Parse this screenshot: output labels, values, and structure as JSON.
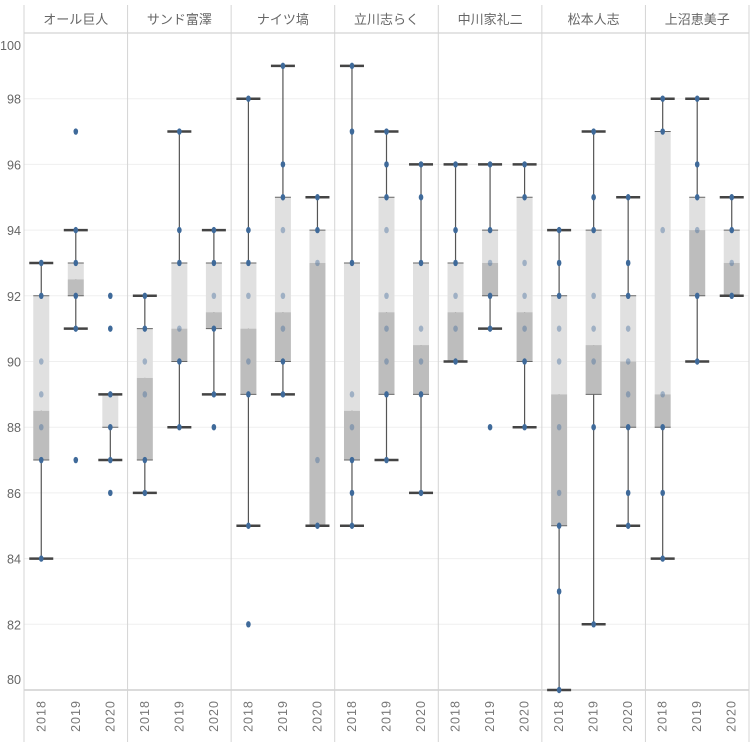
{
  "chart_data": {
    "type": "box",
    "title": "",
    "xlabel": "",
    "ylabel": "",
    "ylim": [
      80,
      100
    ],
    "yticks": [
      80,
      82,
      84,
      86,
      88,
      90,
      92,
      94,
      96,
      98,
      100
    ],
    "grid": true,
    "colors": {
      "point": "#3f6a9a",
      "box_upper": "#e0e0e0",
      "box_lower": "#bdbdbd",
      "whisker": "#555555",
      "cap": "#444444",
      "divider": "#d4d4d4"
    },
    "panels": [
      {
        "name": "オール巨人",
        "boxes": [
          {
            "year": "2018",
            "whisker_low": 84,
            "q1": 87,
            "median": 88.5,
            "q3": 92,
            "whisker_high": 93,
            "points": [
              93,
              92,
              90,
              89,
              88,
              87,
              84
            ]
          },
          {
            "year": "2019",
            "whisker_low": 91,
            "q1": 92,
            "median": 92.5,
            "q3": 93,
            "whisker_high": 94,
            "points": [
              97,
              94,
              93,
              92,
              91,
              87
            ]
          },
          {
            "year": "2020",
            "whisker_low": 87,
            "q1": 88,
            "median": 88,
            "q3": 89,
            "whisker_high": 89,
            "points": [
              92,
              91,
              89,
              88,
              87,
              86
            ]
          }
        ]
      },
      {
        "name": "サンド富澤",
        "boxes": [
          {
            "year": "2018",
            "whisker_low": 86,
            "q1": 87,
            "median": 89.5,
            "q3": 91,
            "whisker_high": 92,
            "points": [
              92,
              91,
              90,
              89,
              87,
              86
            ]
          },
          {
            "year": "2019",
            "whisker_low": 88,
            "q1": 90,
            "median": 91,
            "q3": 93,
            "whisker_high": 97,
            "points": [
              97,
              94,
              93,
              91,
              90,
              88
            ]
          },
          {
            "year": "2020",
            "whisker_low": 89,
            "q1": 91,
            "median": 91.5,
            "q3": 93,
            "whisker_high": 94,
            "points": [
              94,
              93,
              92,
              91,
              89,
              88
            ]
          }
        ]
      },
      {
        "name": "ナイツ塙",
        "boxes": [
          {
            "year": "2018",
            "whisker_low": 85,
            "q1": 89,
            "median": 91,
            "q3": 93,
            "whisker_high": 98,
            "points": [
              98,
              94,
              93,
              92,
              90,
              89,
              85,
              82
            ]
          },
          {
            "year": "2019",
            "whisker_low": 89,
            "q1": 90,
            "median": 91.5,
            "q3": 95,
            "whisker_high": 99,
            "points": [
              99,
              96,
              95,
              94,
              92,
              91,
              90,
              89
            ]
          },
          {
            "year": "2020",
            "whisker_low": 85,
            "q1": 85,
            "median": 93,
            "q3": 94,
            "whisker_high": 95,
            "points": [
              95,
              94,
              93,
              87,
              85
            ]
          }
        ]
      },
      {
        "name": "立川志らく",
        "boxes": [
          {
            "year": "2018",
            "whisker_low": 85,
            "q1": 87,
            "median": 88.5,
            "q3": 93,
            "whisker_high": 99,
            "points": [
              99,
              97,
              93,
              89,
              88,
              87,
              86,
              85
            ]
          },
          {
            "year": "2019",
            "whisker_low": 87,
            "q1": 89,
            "median": 91.5,
            "q3": 95,
            "whisker_high": 97,
            "points": [
              97,
              96,
              95,
              94,
              92,
              91,
              90,
              89,
              87
            ]
          },
          {
            "year": "2020",
            "whisker_low": 86,
            "q1": 89,
            "median": 90.5,
            "q3": 93,
            "whisker_high": 96,
            "points": [
              96,
              95,
              93,
              91,
              90,
              89,
              86
            ]
          }
        ]
      },
      {
        "name": "中川家礼二",
        "boxes": [
          {
            "year": "2018",
            "whisker_low": 90,
            "q1": 90,
            "median": 91.5,
            "q3": 93,
            "whisker_high": 96,
            "points": [
              96,
              94,
              93,
              92,
              91,
              90
            ]
          },
          {
            "year": "2019",
            "whisker_low": 91,
            "q1": 92,
            "median": 93,
            "q3": 94,
            "whisker_high": 96,
            "points": [
              96,
              94,
              93,
              92,
              91,
              88
            ]
          },
          {
            "year": "2020",
            "whisker_low": 88,
            "q1": 90,
            "median": 91.5,
            "q3": 95,
            "whisker_high": 96,
            "points": [
              96,
              95,
              93,
              92,
              91,
              90,
              88
            ]
          }
        ]
      },
      {
        "name": "松本人志",
        "boxes": [
          {
            "year": "2018",
            "whisker_low": 80,
            "q1": 85,
            "median": 89,
            "q3": 92,
            "whisker_high": 94,
            "points": [
              94,
              93,
              92,
              91,
              90,
              88,
              86,
              85,
              83,
              80
            ]
          },
          {
            "year": "2019",
            "whisker_low": 82,
            "q1": 89,
            "median": 90.5,
            "q3": 94,
            "whisker_high": 97,
            "points": [
              97,
              95,
              94,
              92,
              91,
              90,
              88,
              82
            ]
          },
          {
            "year": "2020",
            "whisker_low": 85,
            "q1": 88,
            "median": 90,
            "q3": 92,
            "whisker_high": 95,
            "points": [
              95,
              93,
              92,
              91,
              90,
              89,
              88,
              86,
              85
            ]
          }
        ]
      },
      {
        "name": "上沼恵美子",
        "boxes": [
          {
            "year": "2018",
            "whisker_low": 84,
            "q1": 88,
            "median": 89,
            "q3": 97,
            "whisker_high": 98,
            "points": [
              98,
              97,
              94,
              89,
              88,
              86,
              84
            ]
          },
          {
            "year": "2019",
            "whisker_low": 90,
            "q1": 92,
            "median": 94,
            "q3": 95,
            "whisker_high": 98,
            "points": [
              98,
              96,
              95,
              94,
              92,
              90
            ]
          },
          {
            "year": "2020",
            "whisker_low": 92,
            "q1": 92,
            "median": 93,
            "q3": 94,
            "whisker_high": 95,
            "points": [
              95,
              94,
              93,
              92
            ]
          }
        ]
      }
    ]
  }
}
